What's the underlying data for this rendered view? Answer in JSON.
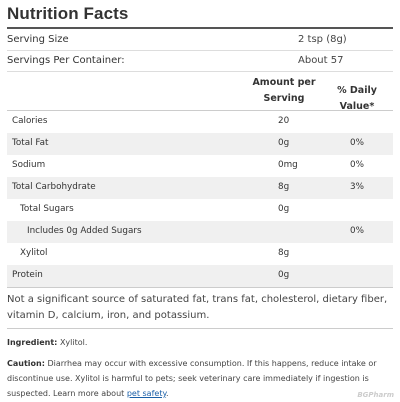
{
  "title": "Nutrition Facts",
  "serving": {
    "size_label": "Serving Size",
    "size_value": "2 tsp (8g)",
    "per_container_label": "Servings Per Container:",
    "per_container_value": "About 57"
  },
  "table": {
    "col_amount_line1": "Amount per",
    "col_amount_line2": "Serving",
    "col_dv": "% Daily Value*",
    "rows": [
      {
        "name": "Calories",
        "amount": "20",
        "dv": ""
      },
      {
        "name": "Total Fat",
        "amount": "0g",
        "dv": "0%"
      },
      {
        "name": "Sodium",
        "amount": "0mg",
        "dv": "0%"
      },
      {
        "name": "Total Carbohydrate",
        "amount": "8g",
        "dv": "3%"
      },
      {
        "name": "Total Sugars",
        "amount": "0g",
        "dv": ""
      },
      {
        "name": "Includes 0g Added Sugars",
        "amount": "",
        "dv": "0%"
      },
      {
        "name": "Xylitol",
        "amount": "8g",
        "dv": ""
      },
      {
        "name": "Protein",
        "amount": "0g",
        "dv": ""
      }
    ]
  },
  "footnote": "Not a significant source of saturated fat, trans fat, cholesterol, dietary fiber, vitamin D, calcium, iron, and potassium.",
  "ingredients": {
    "label": "Ingredient:",
    "value": "Xylitol."
  },
  "caution": {
    "label": "Caution:",
    "text": "Diarrhea may occur with excessive consumption. If this happens, reduce intake or discontinue use. Xylitol is harmful to pets; seek veterinary care immediately if ingestion is suspected. Learn more about",
    "link": "pet safety",
    "end": "."
  },
  "watermark": "BGPharm"
}
